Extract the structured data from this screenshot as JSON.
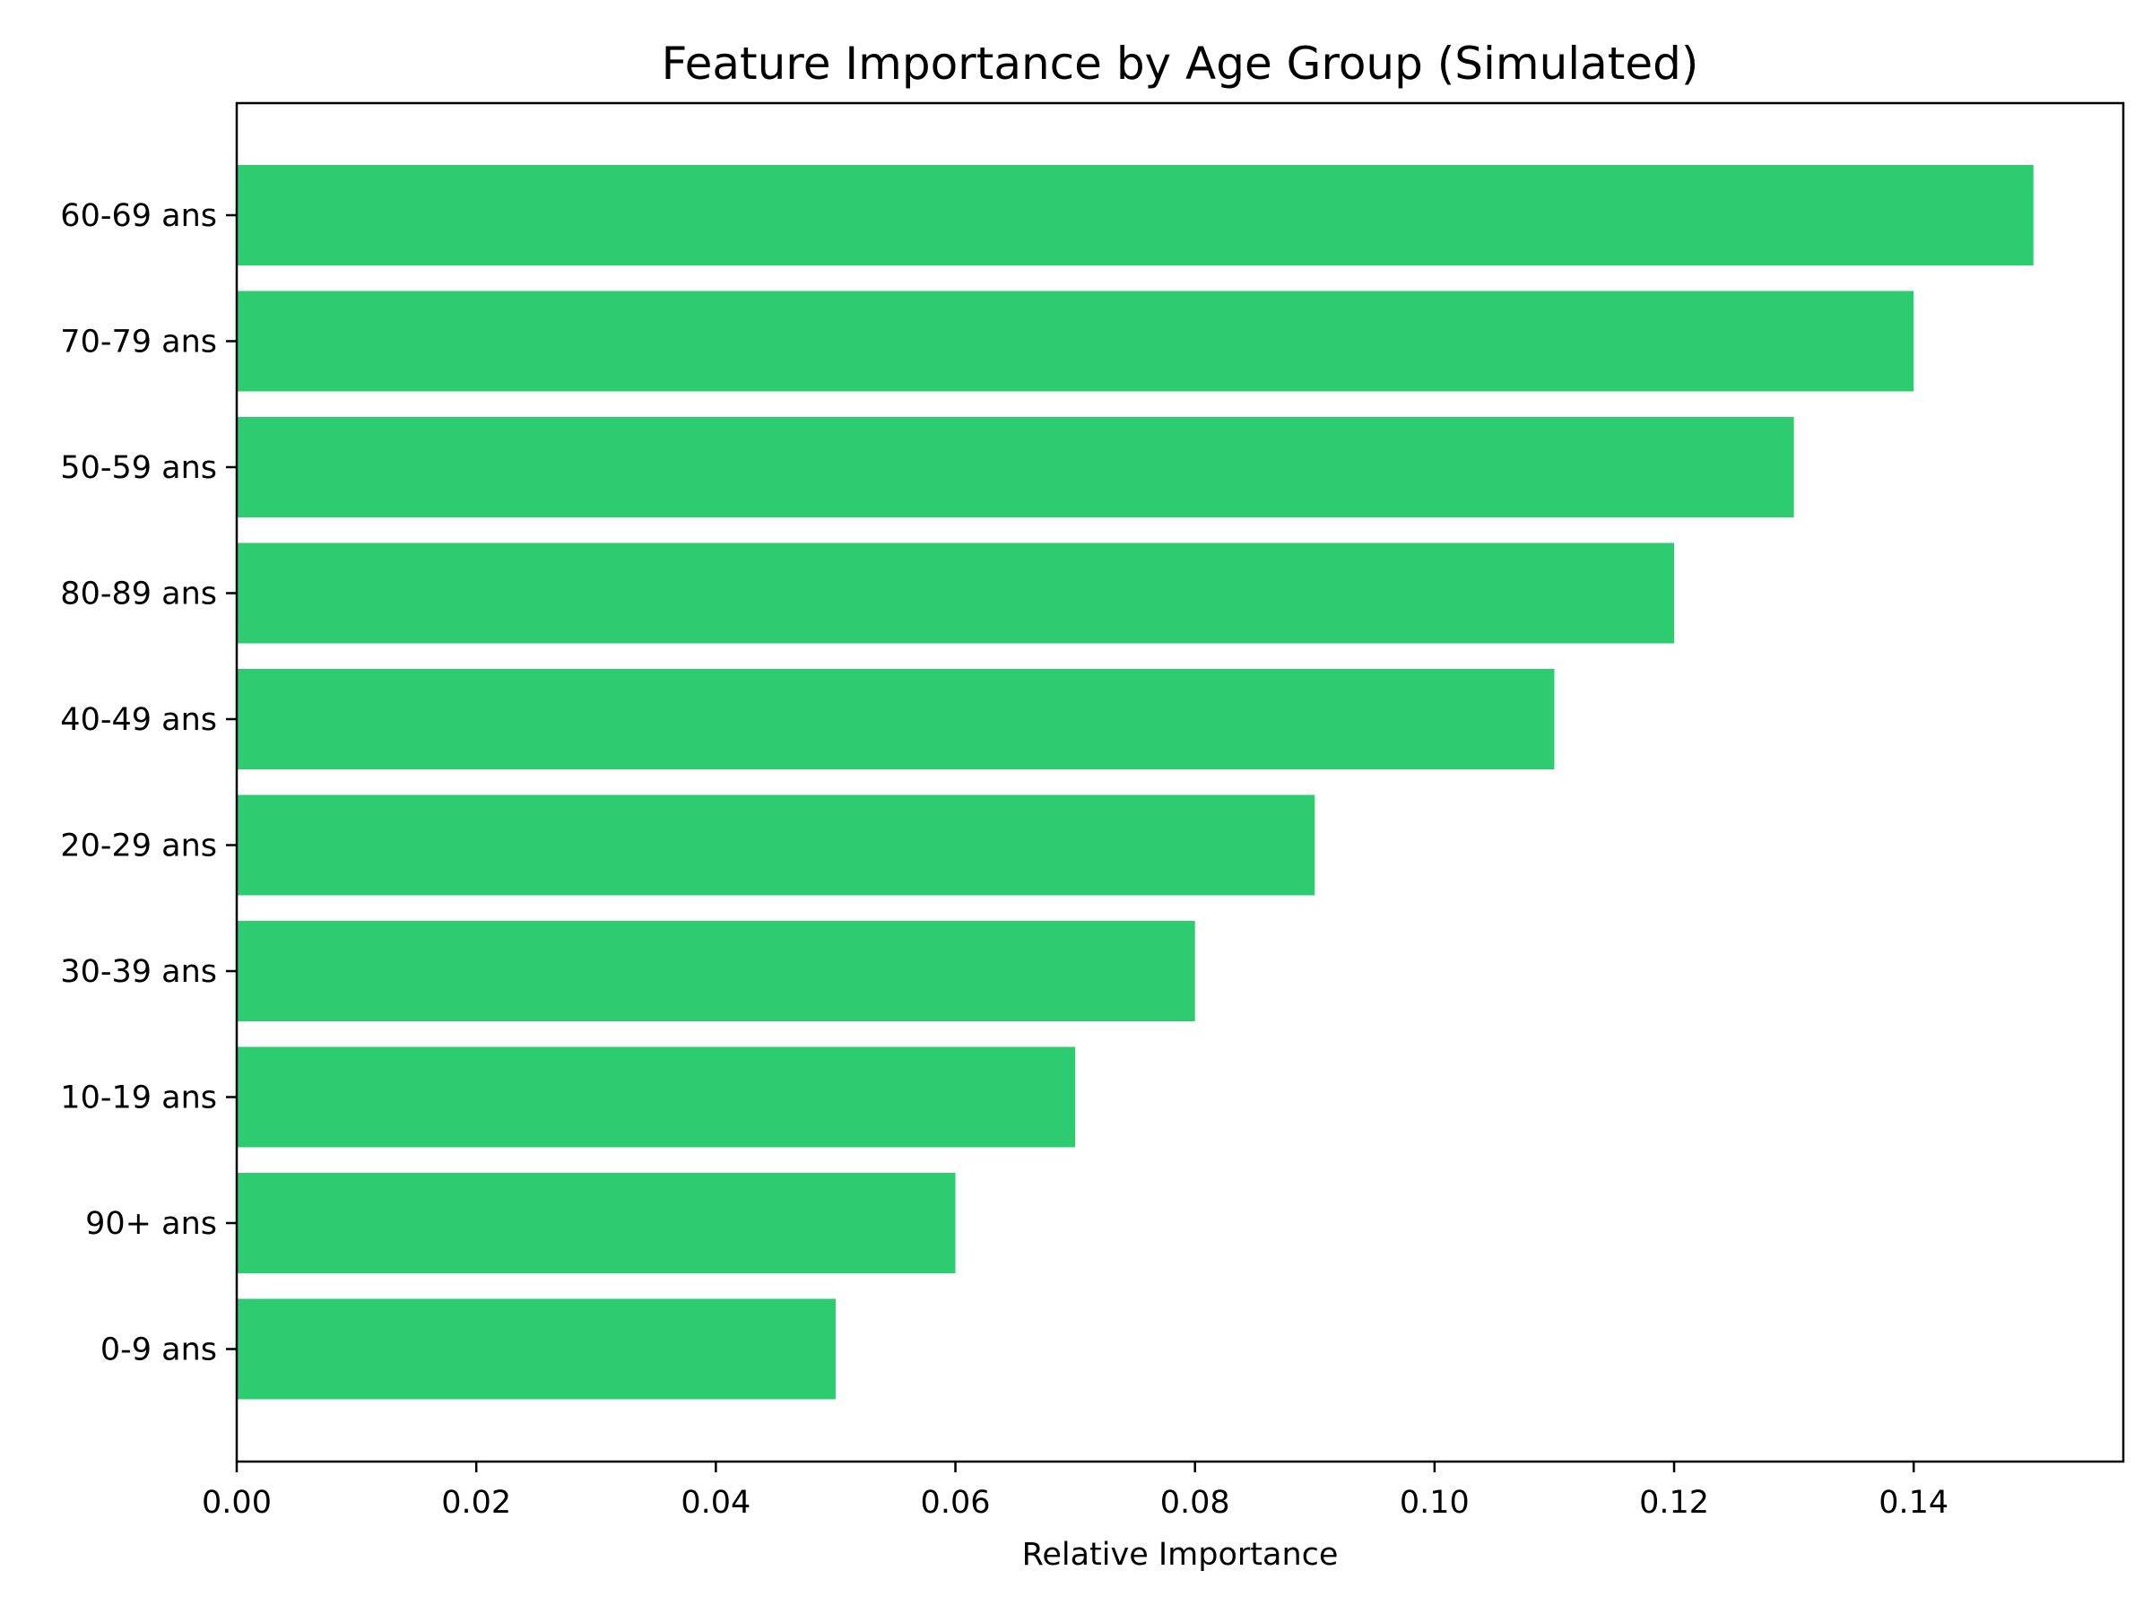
{
  "chart_data": {
    "type": "bar",
    "orientation": "horizontal",
    "title": "Feature Importance by Age Group (Simulated)",
    "xlabel": "Relative Importance",
    "ylabel": "",
    "categories": [
      "60-69 ans",
      "70-79 ans",
      "50-59 ans",
      "80-89 ans",
      "40-49 ans",
      "20-29 ans",
      "30-39 ans",
      "10-19 ans",
      "90+ ans",
      "0-9 ans"
    ],
    "values": [
      0.15,
      0.14,
      0.13,
      0.12,
      0.11,
      0.09,
      0.08,
      0.07,
      0.06,
      0.05
    ],
    "xlim": [
      0,
      0.1575
    ],
    "xticks": [
      "0.00",
      "0.02",
      "0.04",
      "0.06",
      "0.08",
      "0.10",
      "0.12",
      "0.14"
    ],
    "grid": false,
    "legend": "none",
    "bar_color": "#2ecc71"
  }
}
